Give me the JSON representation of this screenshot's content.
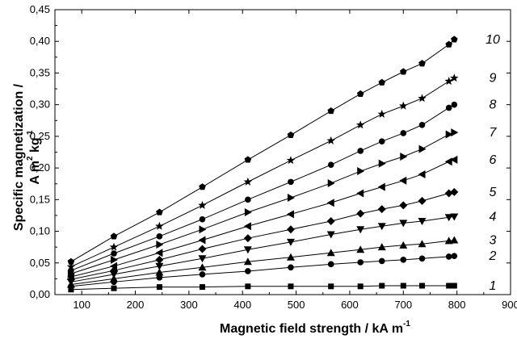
{
  "chart_data": {
    "type": "scatter",
    "xlabel": "Magnetic field strength / kA m",
    "xlabel_sup": "-1",
    "ylabel_line1": "Specific magnetization /",
    "ylabel_line2_a": "A m",
    "ylabel_line2_sup1": "2",
    "ylabel_line2_b": " kg",
    "ylabel_line2_sup2": "-1",
    "xlim": [
      50,
      900
    ],
    "ylim": [
      0,
      0.45
    ],
    "x_ticks": [
      100,
      200,
      300,
      400,
      500,
      600,
      700,
      800,
      900
    ],
    "x_tick_labels": [
      "100",
      "200",
      "300",
      "400",
      "500",
      "600",
      "700",
      "800",
      "900"
    ],
    "y_ticks": [
      0,
      0.05,
      0.1,
      0.15,
      0.2,
      0.25,
      0.3,
      0.35,
      0.4,
      0.45
    ],
    "y_tick_labels": [
      "0,00",
      "0,05",
      "0,10",
      "0,15",
      "0,20",
      "0,25",
      "0,30",
      "0,35",
      "0,40",
      "0,45"
    ],
    "x": [
      80,
      160,
      245,
      325,
      410,
      490,
      565,
      620,
      660,
      700,
      735,
      785,
      795
    ],
    "series": [
      {
        "name": "1",
        "marker": "square",
        "values": [
          0.008,
          0.01,
          0.012,
          0.012,
          0.013,
          0.013,
          0.013,
          0.013,
          0.014,
          0.014,
          0.014,
          0.014,
          0.014
        ]
      },
      {
        "name": "2",
        "marker": "circle",
        "values": [
          0.013,
          0.02,
          0.027,
          0.032,
          0.037,
          0.043,
          0.048,
          0.051,
          0.053,
          0.055,
          0.057,
          0.06,
          0.061
        ]
      },
      {
        "name": "3",
        "marker": "triangle-up",
        "values": [
          0.016,
          0.025,
          0.035,
          0.043,
          0.052,
          0.059,
          0.066,
          0.071,
          0.075,
          0.078,
          0.08,
          0.085,
          0.086
        ]
      },
      {
        "name": "4",
        "marker": "triangle-down",
        "values": [
          0.02,
          0.032,
          0.045,
          0.057,
          0.071,
          0.083,
          0.095,
          0.103,
          0.108,
          0.113,
          0.116,
          0.122,
          0.123
        ]
      },
      {
        "name": "5",
        "marker": "diamond",
        "values": [
          0.024,
          0.038,
          0.055,
          0.072,
          0.089,
          0.103,
          0.116,
          0.128,
          0.135,
          0.141,
          0.148,
          0.16,
          0.162
        ]
      },
      {
        "name": "6",
        "marker": "triangle-left",
        "values": [
          0.028,
          0.045,
          0.066,
          0.086,
          0.108,
          0.127,
          0.145,
          0.16,
          0.17,
          0.18,
          0.19,
          0.21,
          0.213
        ]
      },
      {
        "name": "7",
        "marker": "triangle-right",
        "values": [
          0.033,
          0.055,
          0.079,
          0.103,
          0.13,
          0.153,
          0.176,
          0.195,
          0.207,
          0.218,
          0.23,
          0.253,
          0.256
        ]
      },
      {
        "name": "8",
        "marker": "circle",
        "values": [
          0.038,
          0.065,
          0.092,
          0.119,
          0.15,
          0.178,
          0.205,
          0.227,
          0.242,
          0.255,
          0.268,
          0.295,
          0.3
        ]
      },
      {
        "name": "9",
        "marker": "star",
        "values": [
          0.044,
          0.075,
          0.108,
          0.141,
          0.178,
          0.212,
          0.243,
          0.268,
          0.285,
          0.298,
          0.31,
          0.337,
          0.342
        ]
      },
      {
        "name": "10",
        "marker": "pentagon",
        "values": [
          0.052,
          0.092,
          0.13,
          0.17,
          0.213,
          0.252,
          0.29,
          0.317,
          0.335,
          0.352,
          0.365,
          0.395,
          0.403
        ]
      }
    ]
  }
}
